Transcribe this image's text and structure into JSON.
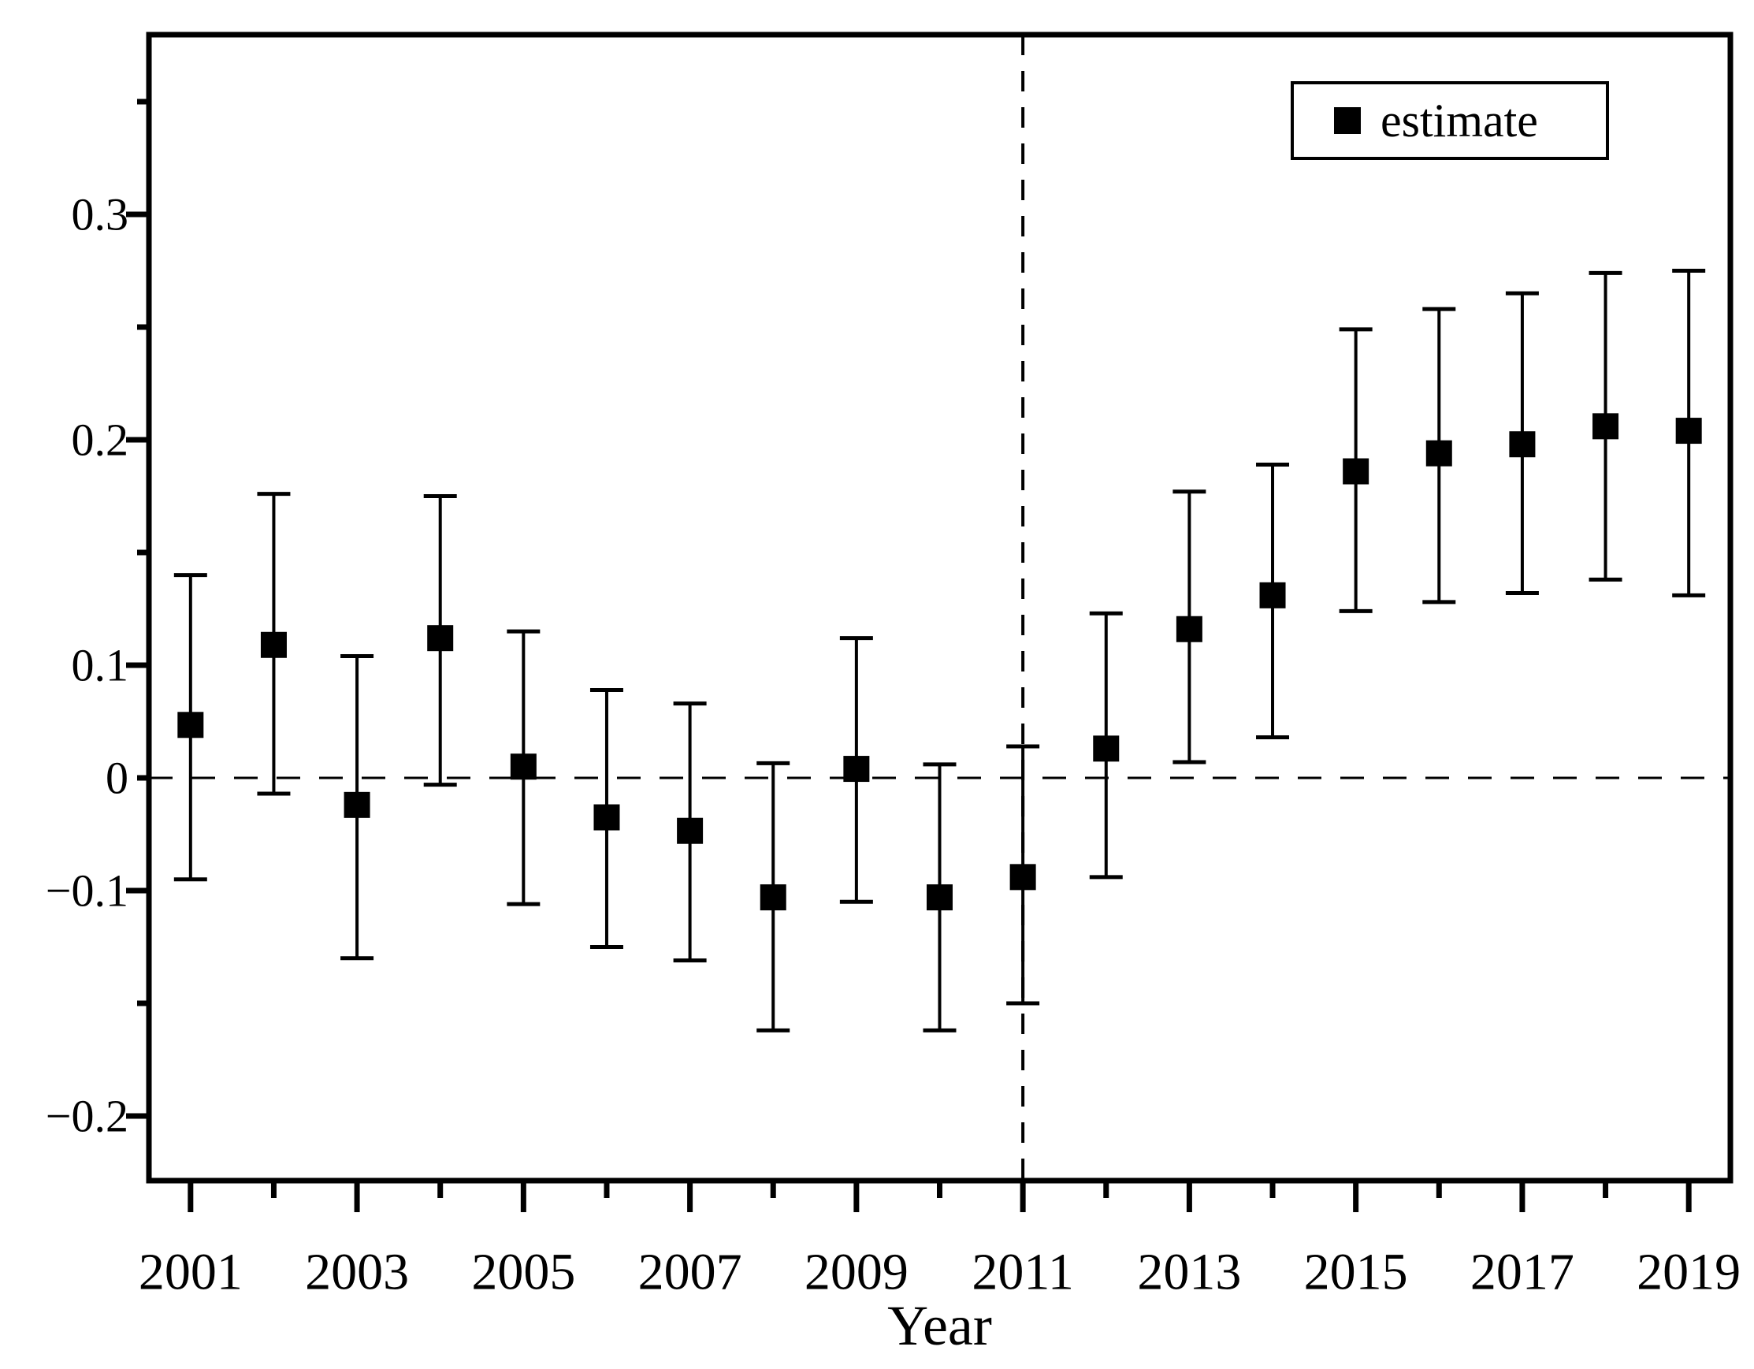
{
  "figure": {
    "background": "#ffffff",
    "ink": "#000000"
  },
  "legend": {
    "label": "estimate",
    "marker": "filled-square",
    "position": "top-right"
  },
  "chart_data": {
    "type": "scatter",
    "subtype": "coefficient-plot-with-error-bars",
    "title": "",
    "xlabel": "Year",
    "ylabel": "",
    "categories": [
      2001,
      2002,
      2003,
      2004,
      2005,
      2006,
      2007,
      2008,
      2009,
      2010,
      2011,
      2012,
      2013,
      2014,
      2015,
      2016,
      2017,
      2018,
      2019
    ],
    "series": [
      {
        "name": "estimate",
        "values": [
          0.047,
          0.109,
          -0.024,
          0.112,
          0.01,
          -0.035,
          -0.047,
          -0.103,
          0.008,
          -0.103,
          -0.088,
          0.026,
          0.116,
          0.131,
          0.186,
          0.194,
          0.198,
          0.206,
          0.204
        ],
        "ci_low": [
          -0.09,
          -0.014,
          -0.13,
          -0.006,
          -0.106,
          -0.125,
          -0.131,
          -0.162,
          -0.105,
          -0.162,
          -0.15,
          -0.088,
          0.014,
          0.036,
          0.124,
          0.128,
          0.132,
          0.138,
          0.131
        ],
        "ci_high": [
          0.14,
          0.176,
          0.104,
          0.175,
          0.115,
          0.078,
          0.066,
          0.013,
          0.112,
          0.012,
          0.028,
          0.123,
          0.177,
          0.189,
          0.249,
          0.258,
          0.265,
          0.274,
          0.275
        ]
      }
    ],
    "x_axis": {
      "range": [
        2000.5,
        2019.5
      ],
      "tick_every_year": true,
      "labeled_ticks": [
        2001,
        2003,
        2005,
        2007,
        2009,
        2011,
        2013,
        2015,
        2017,
        2019
      ]
    },
    "y_axis": {
      "major_tick_labels": [
        "0.3",
        "0.2",
        "0.1",
        "0",
        "-0.1",
        "-0.2"
      ],
      "major_ticks": [
        0.3,
        0.2,
        0.1,
        0,
        -0.1,
        -0.2
      ],
      "minor_ticks": [
        0.35,
        0.25,
        0.15,
        -0.15
      ],
      "short_ticks": [
        0.35,
        0.25,
        0.15,
        0,
        -0.15
      ],
      "top": 0.38,
      "bottom": -0.229,
      "compressed_zone": {
        "from": -0.1,
        "to": 0.1,
        "pixel_scale_ratio": 0.5
      }
    },
    "reference_lines": {
      "horizontal_dashed_y": 0,
      "vertical_dashed_x": 2011
    },
    "grid": false,
    "legend_position": "top-right",
    "marker": "filled-square",
    "color": "#000000"
  }
}
